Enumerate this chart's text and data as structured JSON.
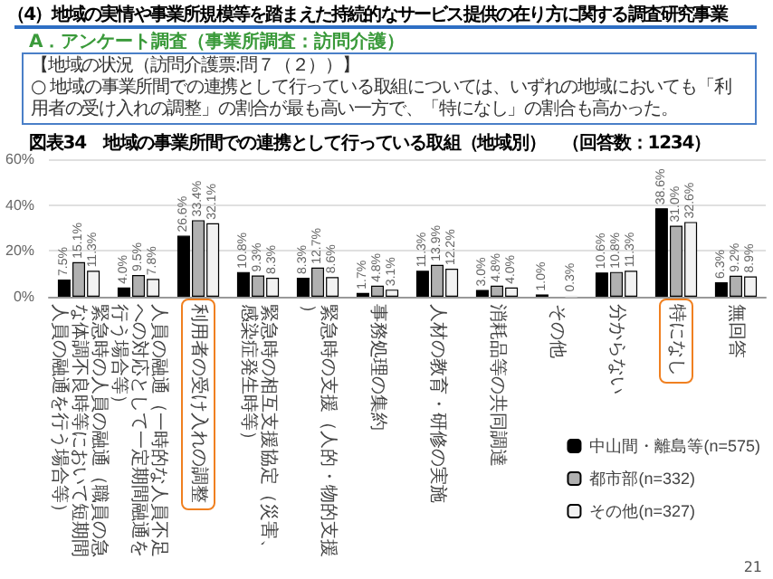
{
  "chart_data": {
    "type": "bar",
    "title": "（4）地域の実情や事業所規模等を踏まえた持続的なサービス提供の在り方に関する調査研究事業",
    "subtitle": "図表34　地域の事業所間での連携として行っている取組（地域別）　（回答数：1234）",
    "annotations": [
      "A．アンケート調査（事業所調査：訪問介護）",
      "【地域の状況（訪問介護票:問７（２））】",
      "○ 地域の事業所間での連携として行っている取組については、いずれの地域においても「利用者の受け入れの調整」の割合が最も高い一方で、「特になし」の割合も高かった。",
      "21"
    ],
    "categories": [
      "緊急時の人員の融通（職員の急な体調不良時等において短期間人員の融通を行う場合等）",
      "人員の融通（一時的な人員不足への対応として一定期間融通を行う場合等）",
      "利用者の受け入れの調整",
      "緊急時の相互支援協定（災害、感染症発生時等）",
      "緊急時の支援（人的・物的支援）",
      "事務処理の集約",
      "人材の教育・研修の実施",
      "消耗品等の共同調達",
      "その他",
      "分からない",
      "特になし",
      "無回答"
    ],
    "series": [
      {
        "name": "中山間・離島等(n=575)",
        "color": "#000000",
        "values": [
          7.5,
          4.0,
          26.6,
          10.8,
          8.3,
          1.7,
          11.3,
          3.0,
          1.0,
          10.6,
          38.6,
          6.3
        ],
        "value_labels": [
          "7.5%",
          "4.0%",
          "26.6%",
          "10.8%",
          "8.3%",
          "1.7%",
          "11.3%",
          "3.0%",
          "1.0%",
          "10.6%",
          "38.6%",
          "6.3%"
        ]
      },
      {
        "name": "都市部(n=332)",
        "color": "#b0b0b0",
        "values": [
          15.1,
          9.5,
          33.4,
          9.3,
          12.7,
          4.8,
          13.9,
          4.8,
          null,
          10.8,
          31.0,
          9.2
        ],
        "value_labels": [
          "15.1%",
          "9.5%",
          "33.4%",
          "9.3%",
          "12.7%",
          "4.8%",
          "13.9%",
          "4.8%",
          null,
          "10.8%",
          "31.0%",
          "9.2%"
        ]
      },
      {
        "name": "その他(n=327)",
        "color": "#f2f2f2",
        "values": [
          11.3,
          7.8,
          32.1,
          8.3,
          8.6,
          3.1,
          12.2,
          4.0,
          0.3,
          11.3,
          32.6,
          8.9
        ],
        "value_labels": [
          "11.3%",
          "7.8%",
          "32.1%",
          "8.3%",
          "8.6%",
          "3.1%",
          "12.2%",
          "4.0%",
          "0.3%",
          "11.3%",
          "32.6%",
          "8.9%"
        ]
      }
    ],
    "ylim": [
      0,
      60
    ],
    "yticks": [
      {
        "value": 0,
        "label": "0%"
      },
      {
        "value": 20,
        "label": "20%"
      },
      {
        "value": 40,
        "label": "40%"
      },
      {
        "value": 60,
        "label": "60%"
      }
    ],
    "grid": "y",
    "legend": "bottom right"
  }
}
